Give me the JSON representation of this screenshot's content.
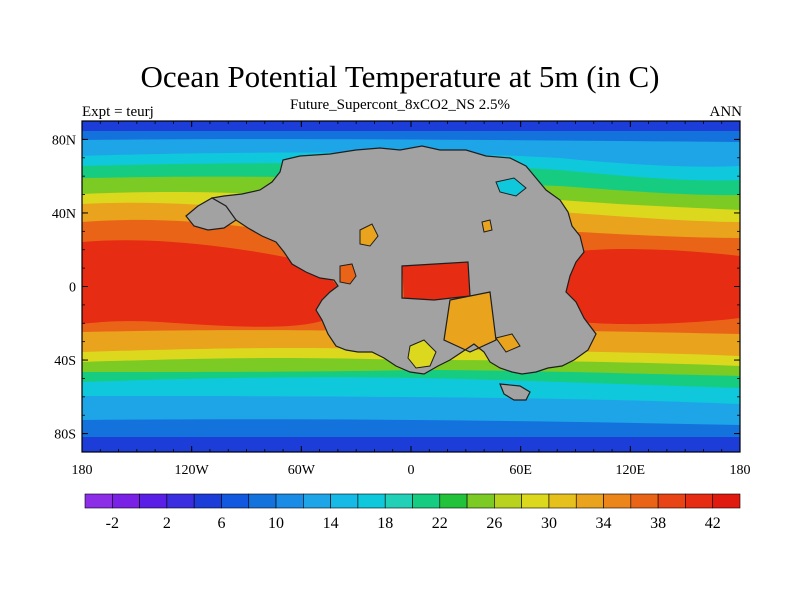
{
  "header": {
    "title": "Ocean Potential Temperature at 5m (in C)",
    "subtitle": "Future_Supercont_8xCO2_NS 2.5%",
    "left_string": "Expt = teurj",
    "right_string": "ANN"
  },
  "axes": {
    "x_ticks": [
      {
        "value": -180,
        "label": "180"
      },
      {
        "value": -120,
        "label": "120W"
      },
      {
        "value": -60,
        "label": "60W"
      },
      {
        "value": 0,
        "label": "0"
      },
      {
        "value": 60,
        "label": "60E"
      },
      {
        "value": 120,
        "label": "120E"
      },
      {
        "value": 180,
        "label": "180"
      }
    ],
    "y_ticks": [
      {
        "value": 80,
        "label": "80N"
      },
      {
        "value": 40,
        "label": "40N"
      },
      {
        "value": 0,
        "label": "0"
      },
      {
        "value": -40,
        "label": "40S"
      },
      {
        "value": -80,
        "label": "80S"
      }
    ],
    "lon_range": [
      -180,
      180
    ],
    "lat_range": [
      -90,
      90
    ]
  },
  "colorbar": {
    "colors": [
      "#8c2ee8",
      "#7a21e6",
      "#5a1fe6",
      "#3a2ee0",
      "#1c3dd8",
      "#1259e0",
      "#1472dc",
      "#1a8ce6",
      "#1ea5e8",
      "#17b9e6",
      "#10c8dc",
      "#22d0b8",
      "#16cc80",
      "#22c33a",
      "#7ccb24",
      "#b8d21e",
      "#dcd81e",
      "#e6c01c",
      "#e9a31c",
      "#ec861a",
      "#ea6418",
      "#e84416",
      "#e62c12",
      "#e01a0e"
    ],
    "labels": [
      "-2",
      "2",
      "6",
      "10",
      "14",
      "18",
      "22",
      "26",
      "30",
      "34",
      "38",
      "42"
    ],
    "label_every": 2,
    "min": -4,
    "step": 2
  },
  "map_colors": {
    "land": "#a2a2a2",
    "coast": "#1e1e1e",
    "polar": "#1c3dd8",
    "subpolar": "#1472dc",
    "cold_temperate": "#1ea5e8",
    "temperate": "#10c8dc",
    "mild": "#16cc80",
    "warm_green": "#7ccb24",
    "warm_yellow": "#dcd81e",
    "warm": "#e9a31c",
    "hot": "#ea6418",
    "hottest": "#e62c12"
  }
}
